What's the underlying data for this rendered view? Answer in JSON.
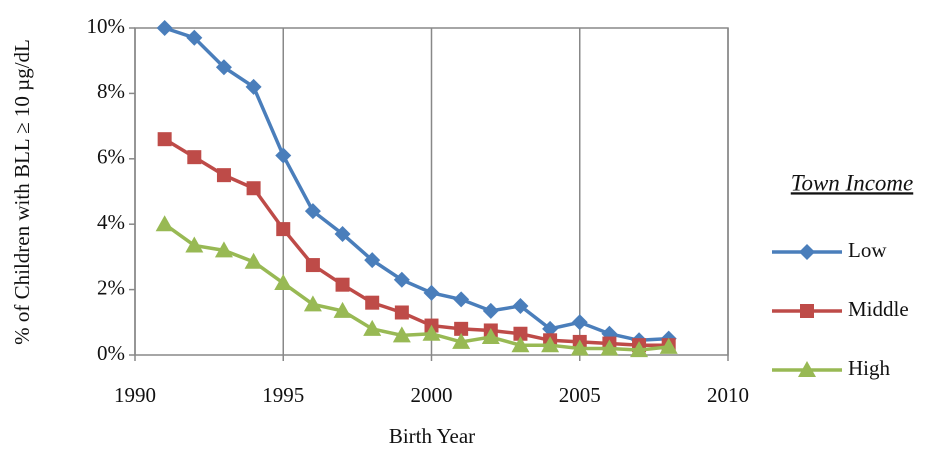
{
  "chart_data": {
    "type": "line",
    "xlabel": "Birth Year",
    "ylabel": "% of Children with BLL ≥ 10 µg/dL",
    "legend_title": "Town Income",
    "legend": "right",
    "grid": "x",
    "x": [
      1991,
      1992,
      1993,
      1994,
      1995,
      1996,
      1997,
      1998,
      1999,
      2000,
      2001,
      2002,
      2003,
      2004,
      2005,
      2006,
      2007,
      2008
    ],
    "xlim": [
      1990,
      2010
    ],
    "xticks": [
      1990,
      1995,
      2000,
      2005,
      2010
    ],
    "ylim": [
      0,
      10
    ],
    "yticks": [
      {
        "value": 0,
        "label": "0%"
      },
      {
        "value": 2,
        "label": "2%"
      },
      {
        "value": 4,
        "label": "4%"
      },
      {
        "value": 6,
        "label": "6%"
      },
      {
        "value": 8,
        "label": "8%"
      },
      {
        "value": 10,
        "label": "10%"
      }
    ],
    "series": [
      {
        "name": "Low",
        "color": "#4a7ebb",
        "marker": "diamond",
        "values": [
          10.0,
          9.7,
          8.8,
          8.2,
          6.1,
          4.4,
          3.7,
          2.9,
          2.3,
          1.9,
          1.7,
          1.35,
          1.5,
          0.8,
          1.0,
          0.65,
          0.45,
          0.5
        ]
      },
      {
        "name": "Middle",
        "color": "#be4b48",
        "marker": "square",
        "values": [
          6.6,
          6.05,
          5.5,
          5.1,
          3.85,
          2.75,
          2.15,
          1.6,
          1.3,
          0.9,
          0.8,
          0.75,
          0.65,
          0.45,
          0.4,
          0.35,
          0.3,
          0.3
        ]
      },
      {
        "name": "High",
        "color": "#98b954",
        "marker": "triangle",
        "values": [
          4.0,
          3.35,
          3.2,
          2.85,
          2.2,
          1.55,
          1.35,
          0.8,
          0.6,
          0.65,
          0.4,
          0.55,
          0.3,
          0.3,
          0.2,
          0.2,
          0.15,
          0.25
        ]
      }
    ]
  }
}
